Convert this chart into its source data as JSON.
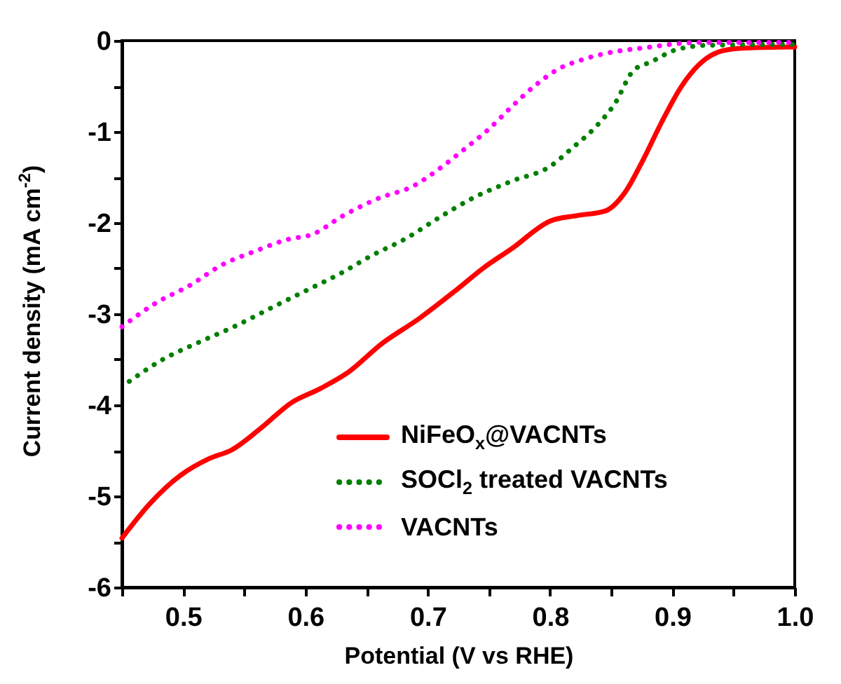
{
  "chart_data": {
    "type": "line",
    "xlabel": "Potential (V vs RHE)",
    "ylabel": "Current density (mA cm$^{-2}$)",
    "xlim": [
      0.45,
      1.0
    ],
    "ylim": [
      -6,
      0
    ],
    "xticks": [
      {
        "value": 0.45,
        "label": null
      },
      0.5,
      {
        "value": 0.55,
        "label": null
      },
      0.6,
      {
        "value": 0.65,
        "label": null
      },
      0.7,
      {
        "value": 0.75,
        "label": null
      },
      0.8,
      {
        "value": 0.85,
        "label": null
      },
      0.9,
      {
        "value": 0.95,
        "label": null
      },
      {
        "value": 1.0,
        "label": "1.0"
      }
    ],
    "yticks": [
      -6,
      {
        "value": -5.5,
        "label": null
      },
      -5,
      {
        "value": -4.5,
        "label": null
      },
      -4,
      {
        "value": -3.5,
        "label": null
      },
      -3,
      {
        "value": -2.5,
        "label": null
      },
      -2,
      {
        "value": -1.5,
        "label": null
      },
      -1,
      {
        "value": -0.5,
        "label": null
      },
      0
    ],
    "legend": "bottom right",
    "series": [
      {
        "name": "NiFeO$_{x}$@VACNTs",
        "color": "#ff0000",
        "line_style": "solid",
        "x": [
          0.45,
          0.473,
          0.498,
          0.521,
          0.54,
          0.563,
          0.589,
          0.612,
          0.635,
          0.662,
          0.693,
          0.723,
          0.746,
          0.769,
          0.8,
          0.822,
          0.845,
          0.861,
          0.876,
          0.891,
          0.907,
          0.922,
          0.941,
          0.96,
          1.0
        ],
        "values": [
          -5.46,
          -5.08,
          -4.77,
          -4.59,
          -4.49,
          -4.26,
          -3.97,
          -3.82,
          -3.64,
          -3.33,
          -3.05,
          -2.74,
          -2.49,
          -2.28,
          -1.98,
          -1.92,
          -1.87,
          -1.67,
          -1.31,
          -0.9,
          -0.51,
          -0.26,
          -0.11,
          -0.08,
          -0.07
        ]
      },
      {
        "name": "SOCl$_{2}$ treated VACNTs",
        "color": "#007f00",
        "line_style": "dotted",
        "x": [
          0.456,
          0.482,
          0.513,
          0.54,
          0.574,
          0.601,
          0.628,
          0.654,
          0.681,
          0.712,
          0.738,
          0.769,
          0.8,
          0.818,
          0.837,
          0.853,
          0.868,
          0.883,
          0.903,
          0.93,
          1.0
        ],
        "values": [
          -3.74,
          -3.51,
          -3.31,
          -3.15,
          -2.92,
          -2.74,
          -2.56,
          -2.36,
          -2.18,
          -1.92,
          -1.72,
          -1.54,
          -1.38,
          -1.18,
          -0.95,
          -0.69,
          -0.33,
          -0.23,
          -0.1,
          -0.05,
          -0.04
        ]
      },
      {
        "name": "VACNTs",
        "color": "#ff00ff",
        "line_style": "dotted",
        "x": [
          0.45,
          0.479,
          0.505,
          0.532,
          0.559,
          0.586,
          0.605,
          0.631,
          0.658,
          0.689,
          0.712,
          0.731,
          0.75,
          0.769,
          0.788,
          0.807,
          0.826,
          0.849,
          0.876,
          0.922,
          1.0
        ],
        "values": [
          -3.14,
          -2.87,
          -2.69,
          -2.46,
          -2.31,
          -2.18,
          -2.13,
          -1.92,
          -1.74,
          -1.59,
          -1.38,
          -1.18,
          -0.97,
          -0.72,
          -0.49,
          -0.31,
          -0.21,
          -0.13,
          -0.08,
          -0.02,
          -0.02
        ]
      }
    ]
  }
}
